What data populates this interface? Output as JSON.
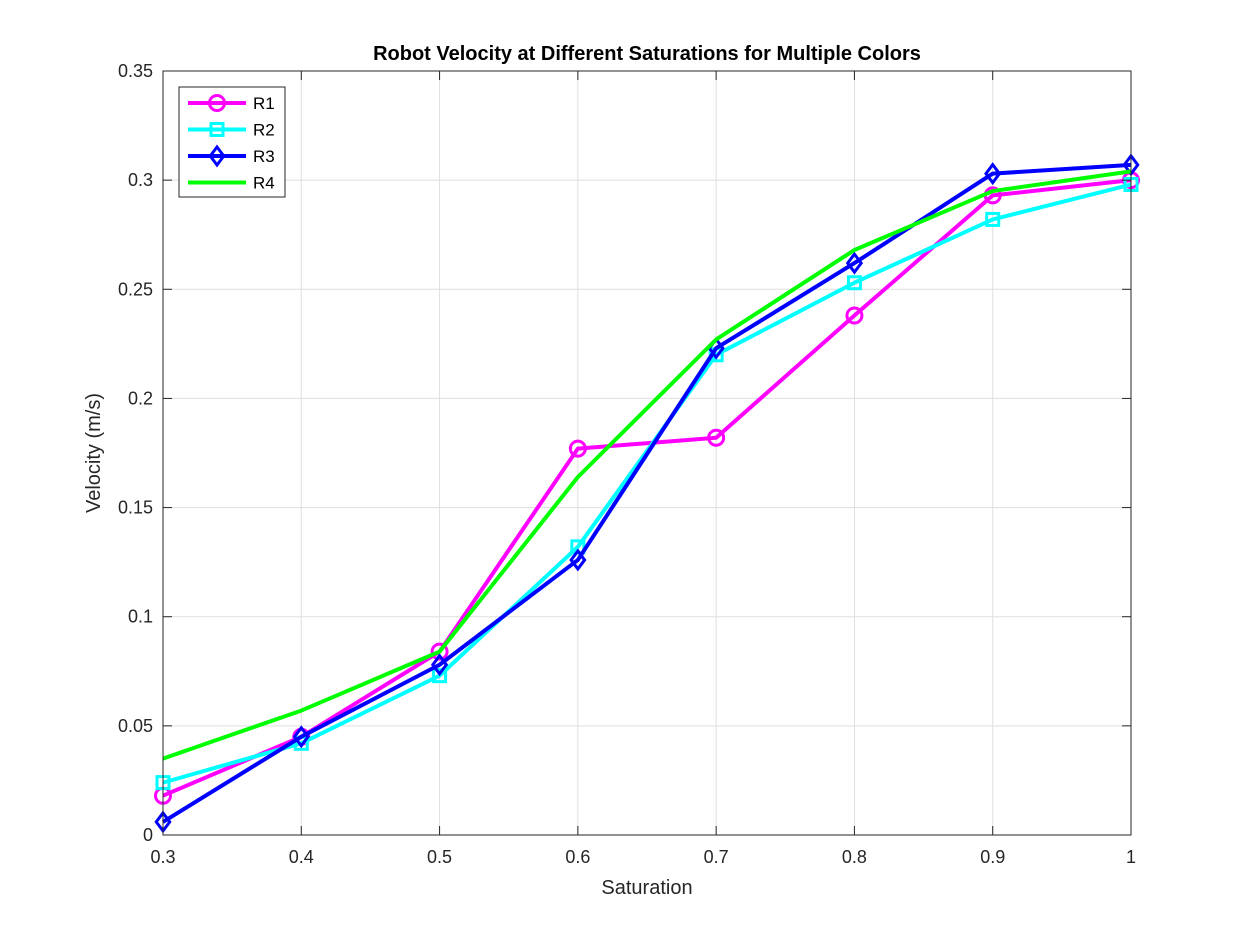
{
  "chart_data": {
    "type": "line",
    "title": "Robot Velocity at Different Saturations for Multiple Colors",
    "xlabel": "Saturation",
    "ylabel": "Velocity (m/s)",
    "xlim": [
      0.3,
      1.0
    ],
    "ylim": [
      0,
      0.35
    ],
    "xticks": [
      "0.3",
      "0.4",
      "0.5",
      "0.6",
      "0.7",
      "0.8",
      "0.9",
      "1"
    ],
    "yticks": [
      "0",
      "0.05",
      "0.1",
      "0.15",
      "0.2",
      "0.25",
      "0.3",
      "0.35"
    ],
    "grid": true,
    "legend_position": "top-left",
    "x": [
      0.3,
      0.4,
      0.5,
      0.6,
      0.7,
      0.8,
      0.9,
      1.0
    ],
    "series": [
      {
        "name": "R1",
        "color": "#ff00ff",
        "marker": "circle",
        "values": [
          0.018,
          0.045,
          0.084,
          0.177,
          0.182,
          0.238,
          0.293,
          0.3
        ]
      },
      {
        "name": "R2",
        "color": "#00ffff",
        "marker": "square",
        "values": [
          0.024,
          0.042,
          0.073,
          0.132,
          0.22,
          0.253,
          0.282,
          0.298
        ]
      },
      {
        "name": "R3",
        "color": "#0000ff",
        "marker": "diamond",
        "values": [
          0.006,
          0.045,
          0.078,
          0.126,
          0.223,
          0.262,
          0.303,
          0.307
        ]
      },
      {
        "name": "R4",
        "color": "#00ff00",
        "marker": "none",
        "values": [
          0.035,
          0.057,
          0.084,
          0.164,
          0.227,
          0.268,
          0.295,
          0.304
        ]
      }
    ]
  }
}
